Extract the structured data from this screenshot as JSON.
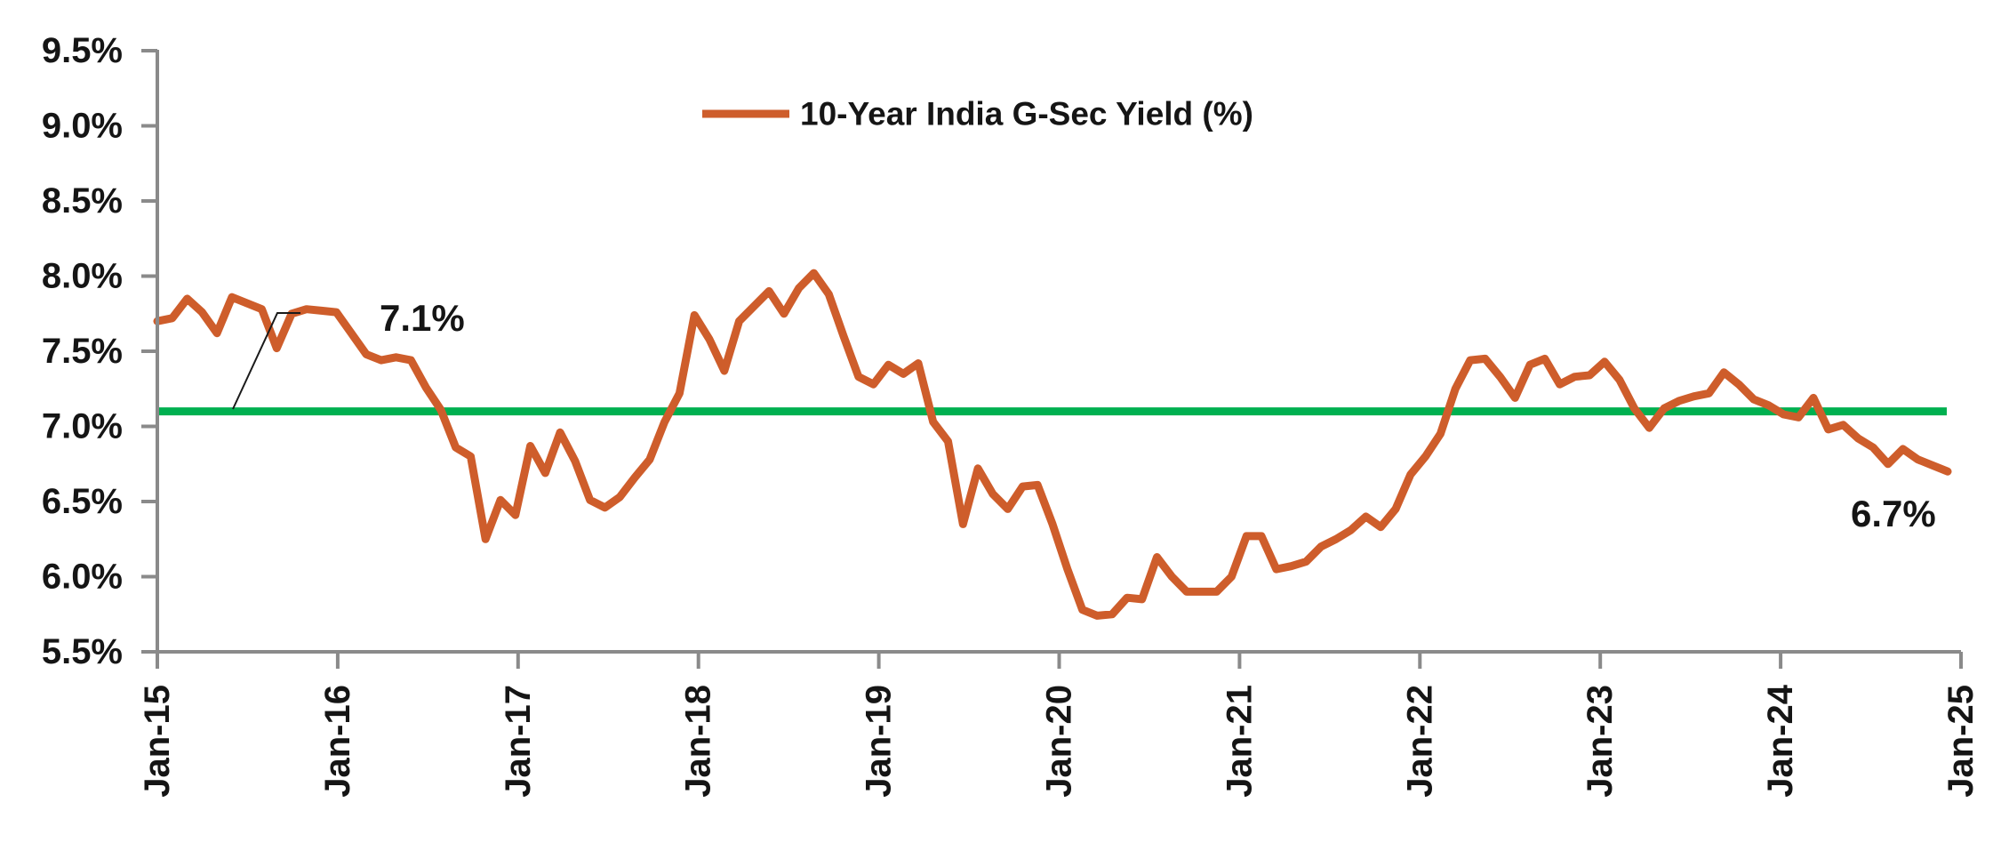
{
  "page": {
    "background": "#ffffff"
  },
  "legend": {
    "label": "10-Year India G-Sec Yield (%)"
  },
  "annotations": {
    "ref_level_label": "7.1%",
    "end_value_label": "6.7%"
  },
  "colors": {
    "series": "#CE5D2B",
    "reference_line": "#00B050",
    "axis": "#8A8A8A",
    "text": "#151515"
  },
  "chart_data": {
    "type": "line",
    "title": "",
    "xlabel": "",
    "ylabel": "",
    "frequency": "monthly",
    "x_start": "Jan-15",
    "x_end": "Jan-25",
    "x_tick_labels": [
      "Jan-15",
      "Jan-16",
      "Jan-17",
      "Jan-18",
      "Jan-19",
      "Jan-20",
      "Jan-21",
      "Jan-22",
      "Jan-23",
      "Jan-24",
      "Jan-25"
    ],
    "y_ticks": [
      5.5,
      6.0,
      6.5,
      7.0,
      7.5,
      8.0,
      8.5,
      9.0,
      9.5
    ],
    "y_tick_labels": [
      "5.5%",
      "6.0%",
      "6.5%",
      "7.0%",
      "7.5%",
      "8.0%",
      "8.5%",
      "9.0%",
      "9.5%"
    ],
    "ylim": [
      5.5,
      9.5
    ],
    "grid": false,
    "legend_position": "top-center",
    "series": [
      {
        "name": "10-Year India G-Sec Yield (%)",
        "color": "#CE5D2B",
        "values": [
          7.7,
          7.72,
          7.85,
          7.76,
          7.62,
          7.86,
          7.82,
          7.78,
          7.52,
          7.75,
          7.78,
          7.77,
          7.76,
          7.62,
          7.48,
          7.44,
          7.46,
          7.44,
          7.26,
          7.11,
          6.86,
          6.8,
          6.25,
          6.51,
          6.41,
          6.87,
          6.69,
          6.96,
          6.77,
          6.51,
          6.46,
          6.53,
          6.66,
          6.78,
          7.03,
          7.22,
          7.74,
          7.58,
          7.37,
          7.7,
          7.8,
          7.9,
          7.75,
          7.92,
          8.02,
          7.88,
          7.6,
          7.33,
          7.28,
          7.41,
          7.35,
          7.42,
          7.03,
          6.9,
          6.35,
          6.72,
          6.55,
          6.45,
          6.6,
          6.61,
          6.35,
          6.05,
          5.78,
          5.74,
          5.75,
          5.86,
          5.85,
          6.13,
          6.0,
          5.9,
          5.9,
          5.9,
          6.0,
          6.27,
          6.27,
          6.05,
          6.07,
          6.1,
          6.2,
          6.25,
          6.31,
          6.4,
          6.33,
          6.45,
          6.68,
          6.8,
          6.95,
          7.25,
          7.44,
          7.45,
          7.33,
          7.19,
          7.41,
          7.45,
          7.28,
          7.33,
          7.34,
          7.43,
          7.31,
          7.12,
          6.99,
          7.12,
          7.17,
          7.2,
          7.22,
          7.36,
          7.28,
          7.18,
          7.14,
          7.08,
          7.06,
          7.19,
          6.98,
          7.01,
          6.92,
          6.86,
          6.75,
          6.85,
          6.78,
          6.74,
          6.7
        ]
      }
    ],
    "reference_line": {
      "value": 7.1,
      "color": "#00B050",
      "label": "7.1%"
    },
    "last_value": 6.7,
    "last_value_label": "6.7%"
  }
}
